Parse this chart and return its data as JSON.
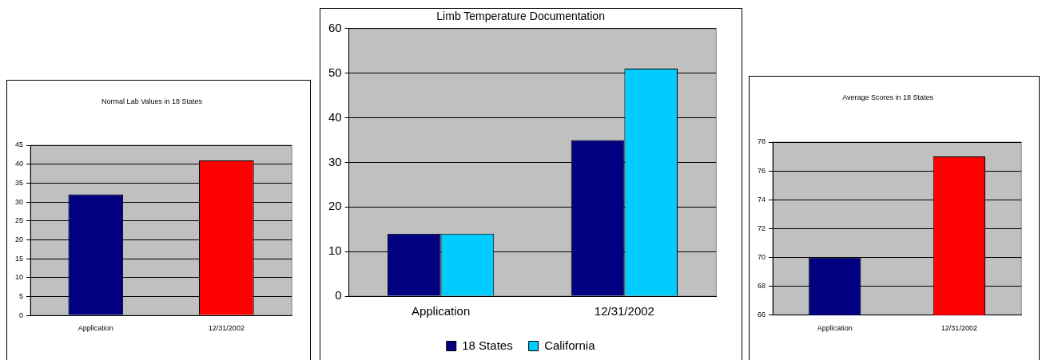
{
  "chart_data": [
    {
      "type": "bar",
      "title": "Normal Lab Values in 18 States",
      "categories": [
        "Application",
        "12/31/2002"
      ],
      "values": [
        32,
        41
      ],
      "colors": [
        "#000080",
        "#ff0000"
      ],
      "ylim": [
        0,
        45
      ],
      "yticks": [
        0,
        5,
        10,
        15,
        20,
        25,
        30,
        35,
        40,
        45
      ],
      "grid": "y"
    },
    {
      "type": "bar",
      "title": "Limb Temperature Documentation",
      "categories": [
        "Application",
        "12/31/2002"
      ],
      "series": [
        {
          "name": "18 States",
          "color": "#000080",
          "values": [
            14,
            35
          ]
        },
        {
          "name": "California",
          "color": "#00ccff",
          "values": [
            14,
            51
          ]
        }
      ],
      "ylim": [
        0,
        60
      ],
      "yticks": [
        0,
        10,
        20,
        30,
        40,
        50,
        60
      ],
      "grid": "y",
      "legend": "bottom"
    },
    {
      "type": "bar",
      "title": "Average Scores in 18 States",
      "categories": [
        "Application",
        "12/31/2002"
      ],
      "values": [
        70,
        77
      ],
      "colors": [
        "#000080",
        "#ff0000"
      ],
      "ylim": [
        66,
        78
      ],
      "yticks": [
        66,
        68,
        70,
        72,
        74,
        76,
        78
      ],
      "grid": "y"
    }
  ]
}
